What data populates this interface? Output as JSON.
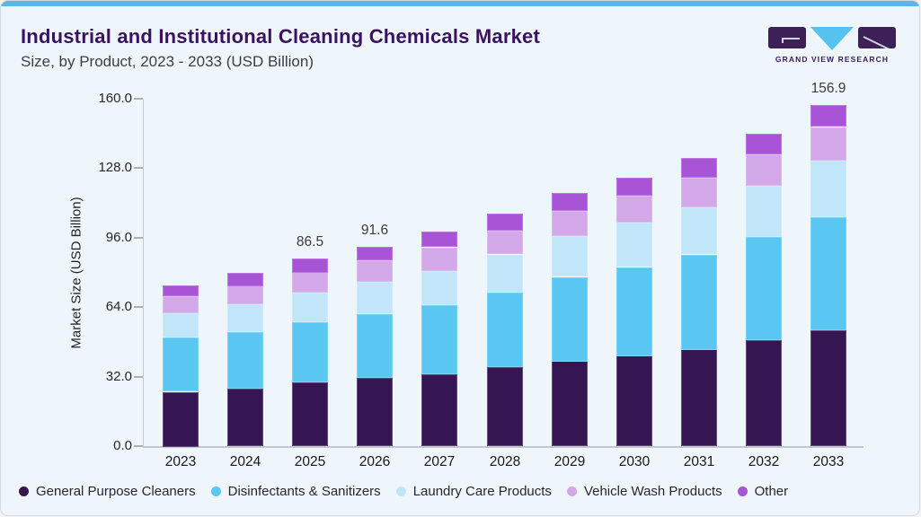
{
  "header": {
    "title": "Industrial and Institutional Cleaning Chemicals Market",
    "subtitle": "Size, by Product, 2023 - 2033 (USD Billion)",
    "logo_text": "GRAND VIEW RESEARCH"
  },
  "colors": {
    "accent_bar": "#5bb5e6",
    "card_background": "#eff6fb",
    "title_text": "#39135f",
    "logo_purple": "#3d2055",
    "logo_blue": "#55c3ee"
  },
  "chart_data": {
    "type": "bar",
    "stacked": true,
    "title": "Industrial and Institutional Cleaning Chemicals Market Size, by Product, 2023 - 2033 (USD Billion)",
    "xlabel": "",
    "ylabel": "Market Size (USD Billion)",
    "ylim": [
      0,
      160
    ],
    "yticks": [
      0.0,
      32.0,
      64.0,
      96.0,
      128.0,
      160.0
    ],
    "grid": false,
    "legend_position": "bottom",
    "categories": [
      "2023",
      "2024",
      "2025",
      "2026",
      "2027",
      "2028",
      "2029",
      "2030",
      "2031",
      "2032",
      "2033"
    ],
    "series": [
      {
        "name": "General Purpose Cleaners",
        "color": "#351652",
        "values": [
          25.0,
          26.4,
          29.5,
          31.2,
          33.0,
          36.2,
          39.1,
          41.6,
          44.5,
          48.7,
          53.2
        ]
      },
      {
        "name": "Disinfectants & Sanitizers",
        "color": "#5ac6f2",
        "values": [
          24.8,
          25.9,
          27.5,
          29.5,
          31.9,
          34.5,
          38.7,
          40.8,
          43.7,
          47.4,
          52.0
        ]
      },
      {
        "name": "Laundry Care Products",
        "color": "#c2e6f9",
        "values": [
          11.2,
          12.8,
          13.7,
          15.0,
          15.8,
          17.5,
          18.7,
          20.3,
          21.6,
          23.7,
          26.2
        ]
      },
      {
        "name": "Vehicle Wash Products",
        "color": "#d2a8e9",
        "values": [
          8.0,
          8.8,
          9.3,
          9.9,
          10.8,
          10.8,
          11.7,
          12.5,
          13.7,
          14.6,
          15.4
        ]
      },
      {
        "name": "Other",
        "color": "#a854d6",
        "values": [
          5.0,
          6.0,
          6.5,
          6.0,
          7.1,
          7.9,
          8.3,
          8.3,
          9.2,
          9.5,
          10.1
        ]
      }
    ],
    "totals": [
      74.0,
      79.9,
      86.5,
      91.6,
      98.6,
      106.9,
      116.5,
      123.5,
      132.7,
      143.9,
      156.9
    ],
    "bar_value_labels": [
      "",
      "",
      "86.5",
      "91.6",
      "",
      "",
      "",
      "",
      "",
      "",
      "156.9"
    ]
  }
}
